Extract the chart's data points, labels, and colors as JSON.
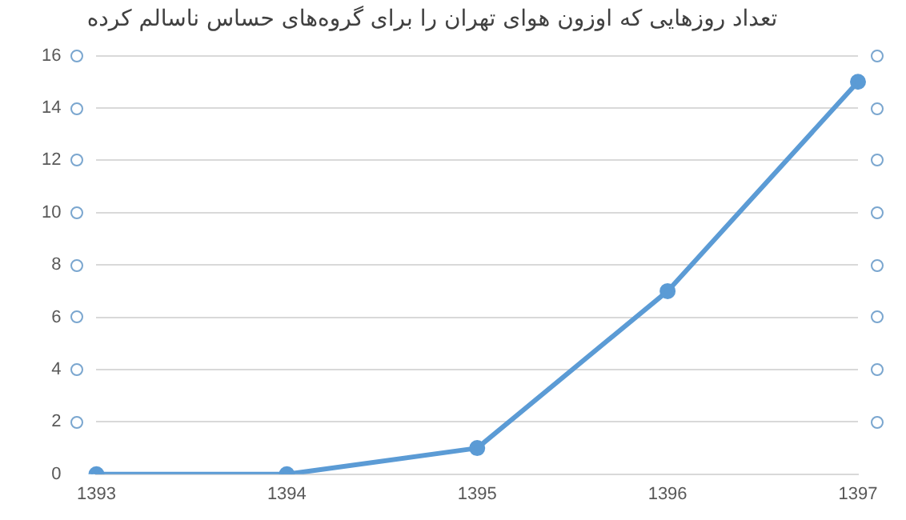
{
  "chart_data": {
    "type": "line",
    "title": "تعداد روزهایی که اوزون هوای تهران را برای گروه‌های حساس ناسالم کرده",
    "categories": [
      "1393",
      "1394",
      "1395",
      "1396",
      "1397"
    ],
    "series": [
      {
        "color": "#5b9bd5",
        "values": [
          0,
          0,
          1,
          7,
          15
        ]
      }
    ],
    "ylim": [
      0,
      16
    ],
    "yticks": [
      0,
      2,
      4,
      6,
      8,
      10,
      12,
      14,
      16
    ],
    "grid": "y",
    "legend": false,
    "marker": "circle",
    "line_style": "solid"
  }
}
